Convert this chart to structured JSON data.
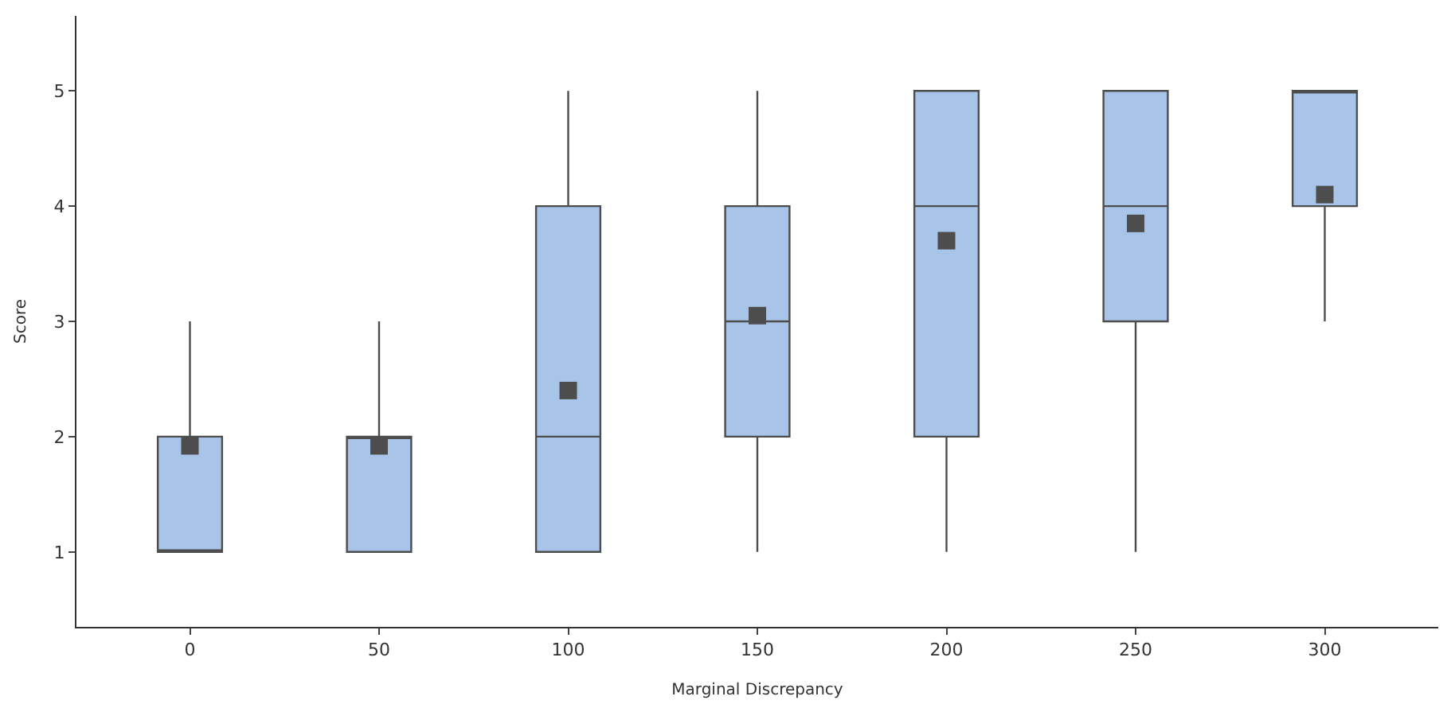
{
  "chart_data": {
    "type": "box",
    "xlabel": "Marginal Discrepancy",
    "ylabel": "Score",
    "categories": [
      "0",
      "50",
      "100",
      "150",
      "200",
      "250",
      "300"
    ],
    "boxes": [
      {
        "low": 1,
        "q1": 1,
        "median": 1,
        "q3": 2,
        "high": 3,
        "mean": 1.92
      },
      {
        "low": 1,
        "q1": 1,
        "median": 2,
        "q3": 2,
        "high": 3,
        "mean": 1.92
      },
      {
        "low": 1,
        "q1": 1,
        "median": 2,
        "q3": 4,
        "high": 5,
        "mean": 2.4
      },
      {
        "low": 1,
        "q1": 2,
        "median": 3,
        "q3": 4,
        "high": 5,
        "mean": 3.05
      },
      {
        "low": 1,
        "q1": 2,
        "median": 4,
        "q3": 5,
        "high": 5,
        "mean": 3.7
      },
      {
        "low": 1,
        "q1": 3,
        "median": 4,
        "q3": 5,
        "high": 5,
        "mean": 3.85
      },
      {
        "low": 3,
        "q1": 4,
        "median": 5,
        "q3": 5,
        "high": 5,
        "mean": 4.1
      }
    ],
    "color": "#a8c4e8",
    "ylim": [
      0.35,
      5.65
    ],
    "yticks": [
      1,
      2,
      3,
      4,
      5
    ],
    "marker": "square"
  }
}
